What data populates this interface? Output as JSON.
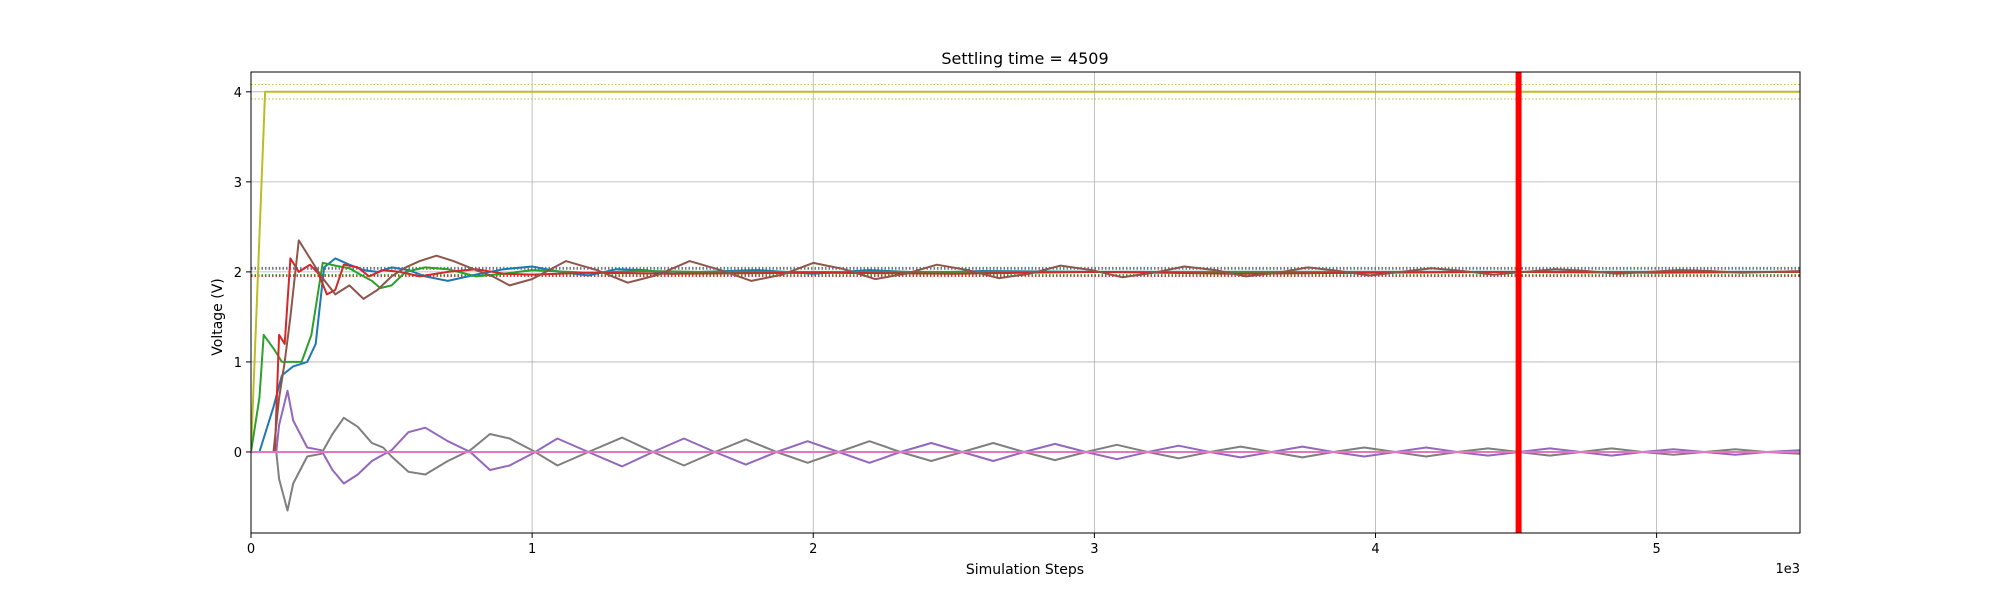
{
  "chart_data": {
    "type": "line",
    "title": "Settling time = 4509",
    "xlabel": "Simulation Steps",
    "ylabel": "Voltage (V)",
    "x_offset_text": "1e3",
    "xlim": [
      0,
      5510
    ],
    "ylim": [
      -0.9,
      4.22
    ],
    "x_ticks": [
      0,
      1000,
      2000,
      3000,
      4000,
      5000
    ],
    "x_tick_labels": [
      "0",
      "1",
      "2",
      "3",
      "4",
      "5"
    ],
    "y_ticks": [
      0,
      1,
      2,
      3,
      4
    ],
    "y_tick_labels": [
      "0",
      "1",
      "2",
      "3",
      "4"
    ],
    "grid": true,
    "settling_time": 4509,
    "settling_marker_color": "#ff0000",
    "tolerance_bands": [
      {
        "center": 4.0,
        "lower": 3.92,
        "upper": 4.08,
        "color": "#bcbd22"
      },
      {
        "center": 2.0,
        "lower": 1.96,
        "upper": 2.04,
        "color": "#1f77b4"
      },
      {
        "center": 2.0,
        "lower": 1.97,
        "upper": 2.05,
        "color": "#2ca02c"
      },
      {
        "center": 2.0,
        "lower": 1.95,
        "upper": 2.03,
        "color": "#d62728"
      }
    ],
    "series": [
      {
        "color": "#bcbd22",
        "points": [
          [
            0,
            0
          ],
          [
            50,
            4
          ],
          [
            5510,
            4
          ]
        ]
      },
      {
        "color": "#1f77b4",
        "points": [
          [
            0,
            0
          ],
          [
            30,
            0
          ],
          [
            80,
            0.5
          ],
          [
            110,
            0.85
          ],
          [
            150,
            0.95
          ],
          [
            200,
            1.0
          ],
          [
            230,
            1.2
          ],
          [
            260,
            2.05
          ],
          [
            300,
            2.15
          ],
          [
            350,
            2.08
          ],
          [
            400,
            2.02
          ],
          [
            450,
            2.0
          ],
          [
            500,
            2.05
          ],
          [
            560,
            2.02
          ],
          [
            620,
            1.95
          ],
          [
            700,
            1.9
          ],
          [
            800,
            1.97
          ],
          [
            900,
            2.03
          ],
          [
            1000,
            2.06
          ],
          [
            1100,
            2.0
          ],
          [
            1200,
            1.96
          ],
          [
            1300,
            2.03
          ],
          [
            1400,
            2.02
          ],
          [
            1500,
            1.98
          ],
          [
            1600,
            2.0
          ],
          [
            1800,
            2.02
          ],
          [
            2000,
            1.98
          ],
          [
            2200,
            2.02
          ],
          [
            2400,
            1.99
          ],
          [
            2600,
            2.01
          ],
          [
            3000,
            2.0
          ],
          [
            5510,
            2.0
          ]
        ]
      },
      {
        "color": "#2ca02c",
        "points": [
          [
            0,
            0
          ],
          [
            30,
            0.6
          ],
          [
            45,
            1.3
          ],
          [
            80,
            1.15
          ],
          [
            110,
            1.0
          ],
          [
            180,
            1.0
          ],
          [
            215,
            1.3
          ],
          [
            255,
            2.1
          ],
          [
            300,
            2.07
          ],
          [
            350,
            2.04
          ],
          [
            400,
            1.95
          ],
          [
            430,
            1.9
          ],
          [
            460,
            1.82
          ],
          [
            500,
            1.85
          ],
          [
            550,
            2.0
          ],
          [
            620,
            2.05
          ],
          [
            700,
            2.03
          ],
          [
            800,
            1.95
          ],
          [
            900,
            1.98
          ],
          [
            1000,
            2.02
          ],
          [
            1200,
            1.99
          ],
          [
            1400,
            2.01
          ],
          [
            1600,
            2.0
          ],
          [
            5510,
            2.0
          ]
        ]
      },
      {
        "color": "#d62728",
        "points": [
          [
            0,
            0
          ],
          [
            85,
            0
          ],
          [
            100,
            1.3
          ],
          [
            120,
            1.2
          ],
          [
            140,
            2.15
          ],
          [
            170,
            2.0
          ],
          [
            210,
            2.08
          ],
          [
            240,
            1.98
          ],
          [
            270,
            1.75
          ],
          [
            300,
            1.8
          ],
          [
            330,
            2.08
          ],
          [
            380,
            2.05
          ],
          [
            420,
            1.95
          ],
          [
            470,
            2.02
          ],
          [
            530,
            2.0
          ],
          [
            600,
            1.95
          ],
          [
            700,
            2.0
          ],
          [
            800,
            2.03
          ],
          [
            900,
            1.98
          ],
          [
            1000,
            1.97
          ],
          [
            1200,
            1.99
          ],
          [
            1500,
            1.98
          ],
          [
            2000,
            1.99
          ],
          [
            2500,
            1.98
          ],
          [
            3000,
            2.0
          ],
          [
            3500,
            1.98
          ],
          [
            4000,
            1.99
          ],
          [
            4500,
            2.0
          ],
          [
            5000,
            1.99
          ],
          [
            5510,
            2.0
          ]
        ]
      },
      {
        "color": "#8c564b",
        "points": [
          [
            0,
            0
          ],
          [
            80,
            0
          ],
          [
            100,
            0.6
          ],
          [
            120,
            1.0
          ],
          [
            140,
            1.5
          ],
          [
            170,
            2.35
          ],
          [
            200,
            2.2
          ],
          [
            250,
            1.95
          ],
          [
            300,
            1.75
          ],
          [
            350,
            1.85
          ],
          [
            400,
            1.7
          ],
          [
            450,
            1.8
          ],
          [
            500,
            1.95
          ],
          [
            550,
            2.05
          ],
          [
            600,
            2.12
          ],
          [
            660,
            2.18
          ],
          [
            720,
            2.12
          ],
          [
            800,
            2.02
          ],
          [
            860,
            1.95
          ],
          [
            920,
            1.85
          ],
          [
            1000,
            1.92
          ],
          [
            1120,
            2.12
          ],
          [
            1230,
            2.02
          ],
          [
            1340,
            1.88
          ],
          [
            1450,
            1.97
          ],
          [
            1560,
            2.12
          ],
          [
            1670,
            2.02
          ],
          [
            1780,
            1.9
          ],
          [
            1890,
            1.97
          ],
          [
            2000,
            2.1
          ],
          [
            2110,
            2.03
          ],
          [
            2220,
            1.92
          ],
          [
            2330,
            1.98
          ],
          [
            2440,
            2.08
          ],
          [
            2550,
            2.02
          ],
          [
            2660,
            1.93
          ],
          [
            2770,
            1.98
          ],
          [
            2880,
            2.07
          ],
          [
            2990,
            2.02
          ],
          [
            3100,
            1.94
          ],
          [
            3210,
            1.99
          ],
          [
            3320,
            2.06
          ],
          [
            3430,
            2.02
          ],
          [
            3540,
            1.95
          ],
          [
            3650,
            1.99
          ],
          [
            3760,
            2.05
          ],
          [
            3870,
            2.01
          ],
          [
            3980,
            1.96
          ],
          [
            4090,
            2.0
          ],
          [
            4200,
            2.04
          ],
          [
            4310,
            2.01
          ],
          [
            4420,
            1.97
          ],
          [
            4530,
            2.0
          ],
          [
            4640,
            2.03
          ],
          [
            4750,
            2.01
          ],
          [
            4860,
            1.98
          ],
          [
            4970,
            2.0
          ],
          [
            5080,
            2.02
          ],
          [
            5190,
            2.01
          ],
          [
            5300,
            1.99
          ],
          [
            5410,
            2.0
          ],
          [
            5510,
            2.01
          ]
        ]
      },
      {
        "color": "#7f7f7f",
        "points": [
          [
            0,
            0
          ],
          [
            90,
            0
          ],
          [
            100,
            -0.3
          ],
          [
            130,
            -0.65
          ],
          [
            150,
            -0.35
          ],
          [
            200,
            -0.05
          ],
          [
            250,
            -0.02
          ],
          [
            290,
            0.2
          ],
          [
            330,
            0.38
          ],
          [
            380,
            0.28
          ],
          [
            430,
            0.1
          ],
          [
            470,
            0.05
          ],
          [
            500,
            -0.05
          ],
          [
            560,
            -0.22
          ],
          [
            620,
            -0.25
          ],
          [
            700,
            -0.1
          ],
          [
            780,
            0.02
          ],
          [
            850,
            0.2
          ],
          [
            920,
            0.15
          ],
          [
            1000,
            0.02
          ],
          [
            1090,
            -0.15
          ],
          [
            1200,
            0.0
          ],
          [
            1320,
            0.16
          ],
          [
            1430,
            0.0
          ],
          [
            1540,
            -0.15
          ],
          [
            1650,
            0.0
          ],
          [
            1760,
            0.14
          ],
          [
            1870,
            0.0
          ],
          [
            1980,
            -0.12
          ],
          [
            2090,
            0.0
          ],
          [
            2200,
            0.12
          ],
          [
            2310,
            0.0
          ],
          [
            2420,
            -0.1
          ],
          [
            2530,
            0.0
          ],
          [
            2640,
            0.1
          ],
          [
            2750,
            0.0
          ],
          [
            2860,
            -0.09
          ],
          [
            2970,
            0.0
          ],
          [
            3080,
            0.08
          ],
          [
            3190,
            0.0
          ],
          [
            3300,
            -0.07
          ],
          [
            3410,
            0.0
          ],
          [
            3520,
            0.06
          ],
          [
            3630,
            0.0
          ],
          [
            3740,
            -0.06
          ],
          [
            3850,
            0.0
          ],
          [
            3960,
            0.05
          ],
          [
            4070,
            0.0
          ],
          [
            4180,
            -0.05
          ],
          [
            4290,
            0.0
          ],
          [
            4400,
            0.04
          ],
          [
            4510,
            0.0
          ],
          [
            4620,
            -0.04
          ],
          [
            4730,
            0.0
          ],
          [
            4840,
            0.04
          ],
          [
            4950,
            0.0
          ],
          [
            5060,
            -0.03
          ],
          [
            5170,
            0.0
          ],
          [
            5280,
            0.03
          ],
          [
            5390,
            0.0
          ],
          [
            5510,
            -0.02
          ]
        ]
      },
      {
        "color": "#9467bd",
        "points": [
          [
            0,
            0
          ],
          [
            90,
            0
          ],
          [
            100,
            0.3
          ],
          [
            130,
            0.68
          ],
          [
            150,
            0.35
          ],
          [
            200,
            0.05
          ],
          [
            250,
            0.02
          ],
          [
            290,
            -0.2
          ],
          [
            330,
            -0.35
          ],
          [
            380,
            -0.25
          ],
          [
            430,
            -0.1
          ],
          [
            470,
            -0.03
          ],
          [
            500,
            0.02
          ],
          [
            560,
            0.22
          ],
          [
            620,
            0.27
          ],
          [
            700,
            0.12
          ],
          [
            780,
            0.0
          ],
          [
            850,
            -0.2
          ],
          [
            920,
            -0.15
          ],
          [
            1000,
            -0.02
          ],
          [
            1090,
            0.15
          ],
          [
            1200,
            0.0
          ],
          [
            1320,
            -0.16
          ],
          [
            1430,
            0.0
          ],
          [
            1540,
            0.15
          ],
          [
            1650,
            0.0
          ],
          [
            1760,
            -0.14
          ],
          [
            1870,
            0.0
          ],
          [
            1980,
            0.12
          ],
          [
            2090,
            0.0
          ],
          [
            2200,
            -0.12
          ],
          [
            2310,
            0.0
          ],
          [
            2420,
            0.1
          ],
          [
            2530,
            0.0
          ],
          [
            2640,
            -0.1
          ],
          [
            2750,
            0.0
          ],
          [
            2860,
            0.09
          ],
          [
            2970,
            0.0
          ],
          [
            3080,
            -0.08
          ],
          [
            3190,
            0.0
          ],
          [
            3300,
            0.07
          ],
          [
            3410,
            0.0
          ],
          [
            3520,
            -0.06
          ],
          [
            3630,
            0.0
          ],
          [
            3740,
            0.06
          ],
          [
            3850,
            0.0
          ],
          [
            3960,
            -0.05
          ],
          [
            4070,
            0.0
          ],
          [
            4180,
            0.05
          ],
          [
            4290,
            0.0
          ],
          [
            4400,
            -0.04
          ],
          [
            4510,
            0.0
          ],
          [
            4620,
            0.04
          ],
          [
            4730,
            0.0
          ],
          [
            4840,
            -0.04
          ],
          [
            4950,
            0.0
          ],
          [
            5060,
            0.03
          ],
          [
            5170,
            0.0
          ],
          [
            5280,
            -0.03
          ],
          [
            5390,
            0.0
          ],
          [
            5510,
            0.02
          ]
        ]
      },
      {
        "color": "#e377c2",
        "points": [
          [
            0,
            0
          ],
          [
            5510,
            0
          ]
        ]
      }
    ]
  }
}
